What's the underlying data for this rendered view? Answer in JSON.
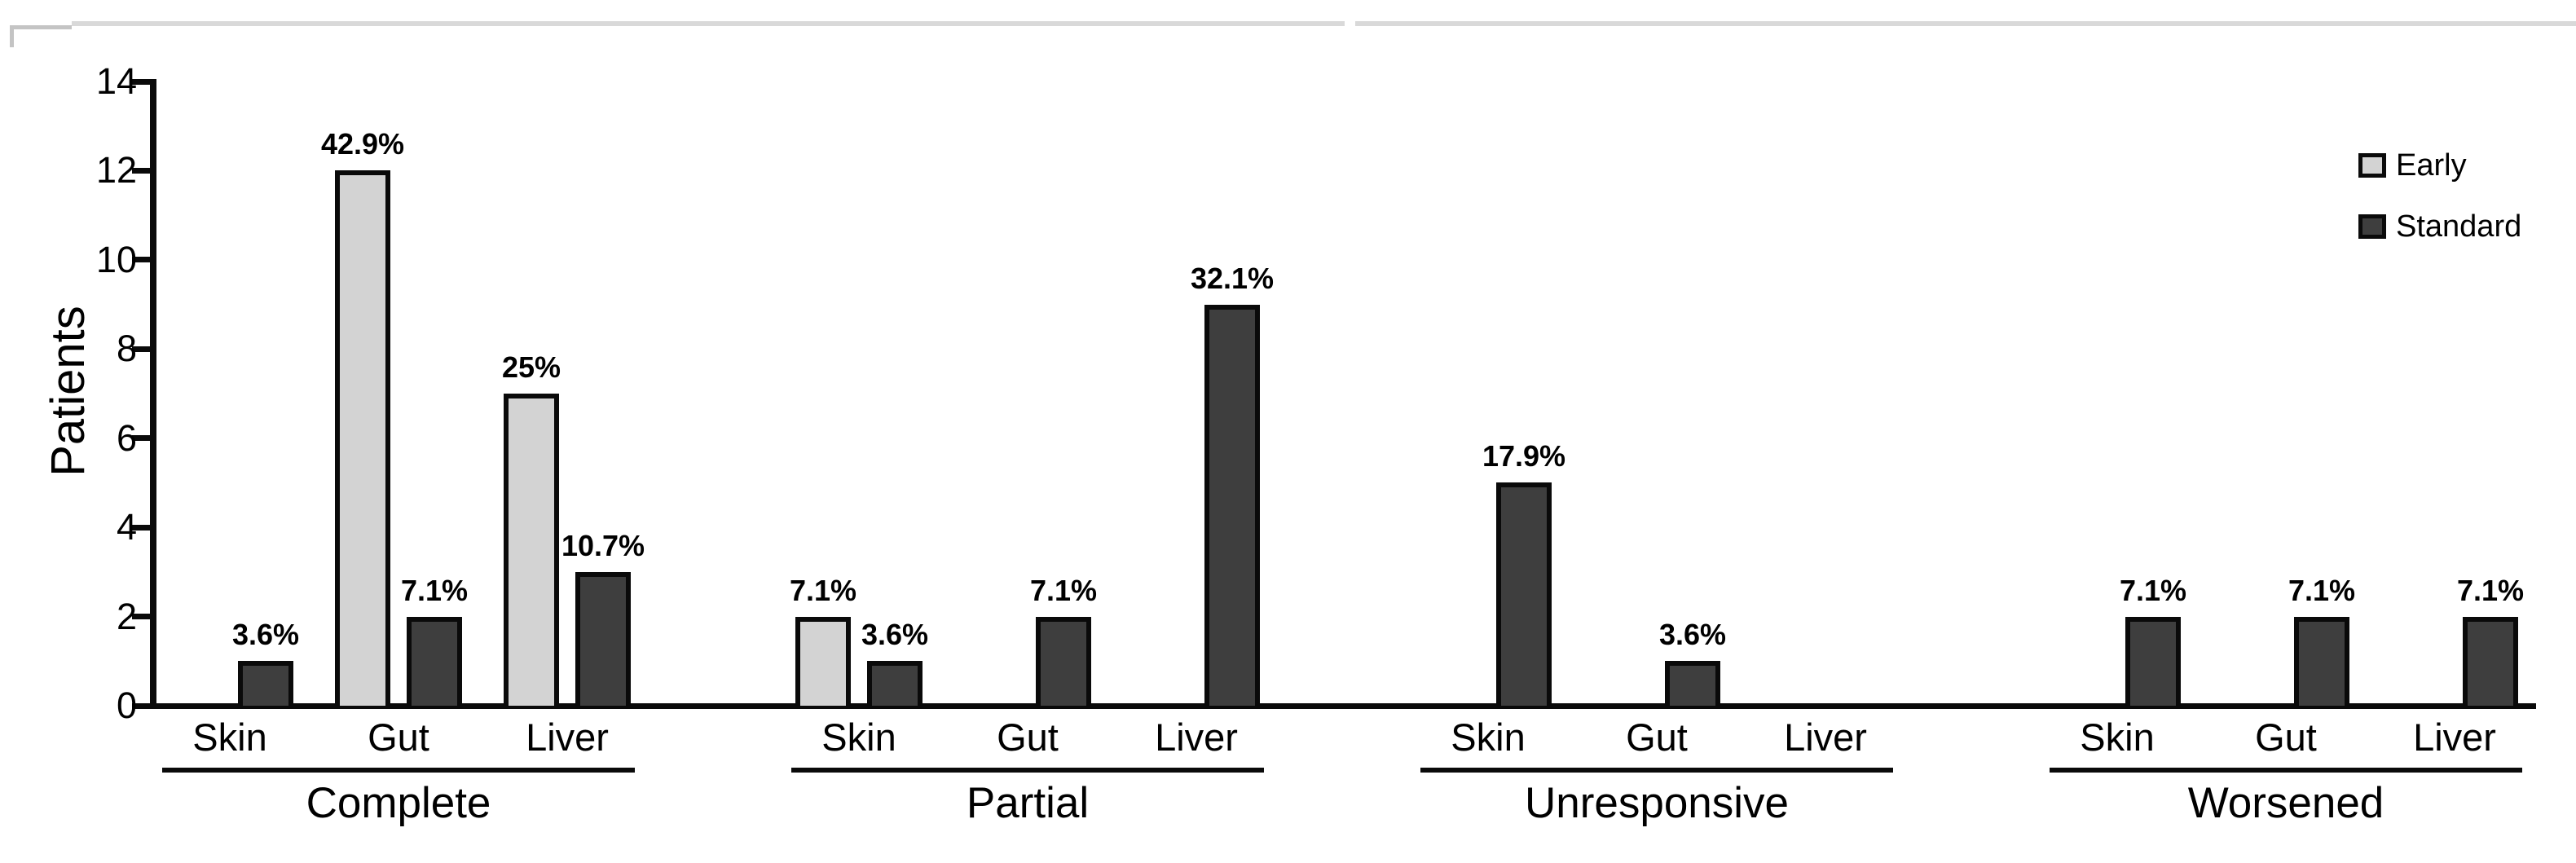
{
  "figure": {
    "background": "#ffffff",
    "border_artifact_color": "#d9d9d9",
    "legend": [
      {
        "label": "Early",
        "color": "#d3d3d3"
      },
      {
        "label": "Standard",
        "color": "#3e3e3e"
      }
    ]
  },
  "chart_data": {
    "type": "bar",
    "title": "",
    "xlabel": "",
    "ylabel": "Patients",
    "ylim": [
      0,
      14
    ],
    "yticks": [
      0,
      2,
      4,
      6,
      8,
      10,
      12,
      14
    ],
    "grid": false,
    "legend_position": "top-right",
    "series_names": [
      "Early",
      "Standard"
    ],
    "series_colors": {
      "Early": "#d3d3d3",
      "Standard": "#3e3e3e"
    },
    "bar_border_color": "#0a0a0a",
    "groups": [
      {
        "label": "Complete",
        "categories": [
          "Skin",
          "Gut",
          "Liver"
        ],
        "series": [
          {
            "name": "Early",
            "values": [
              0,
              12,
              7
            ],
            "pct_labels": [
              "",
              "42.9%",
              "25%"
            ]
          },
          {
            "name": "Standard",
            "values": [
              1,
              2,
              3
            ],
            "pct_labels": [
              "3.6%",
              "7.1%",
              "10.7%"
            ]
          }
        ]
      },
      {
        "label": "Partial",
        "categories": [
          "Skin",
          "Gut",
          "Liver"
        ],
        "series": [
          {
            "name": "Early",
            "values": [
              2,
              0,
              0
            ],
            "pct_labels": [
              "7.1%",
              "",
              ""
            ]
          },
          {
            "name": "Standard",
            "values": [
              1,
              2,
              9
            ],
            "pct_labels": [
              "3.6%",
              "7.1%",
              "32.1%"
            ]
          }
        ]
      },
      {
        "label": "Unresponsive",
        "categories": [
          "Skin",
          "Gut",
          "Liver"
        ],
        "series": [
          {
            "name": "Early",
            "values": [
              0,
              0,
              0
            ],
            "pct_labels": [
              "",
              "",
              ""
            ]
          },
          {
            "name": "Standard",
            "values": [
              5,
              1,
              0
            ],
            "pct_labels": [
              "17.9%",
              "3.6%",
              ""
            ]
          }
        ]
      },
      {
        "label": "Worsened",
        "categories": [
          "Skin",
          "Gut",
          "Liver"
        ],
        "series": [
          {
            "name": "Early",
            "values": [
              0,
              0,
              0
            ],
            "pct_labels": [
              "",
              "",
              ""
            ]
          },
          {
            "name": "Standard",
            "values": [
              2,
              2,
              2
            ],
            "pct_labels": [
              "7.1%",
              "7.1%",
              "7.1%"
            ]
          }
        ]
      }
    ]
  }
}
